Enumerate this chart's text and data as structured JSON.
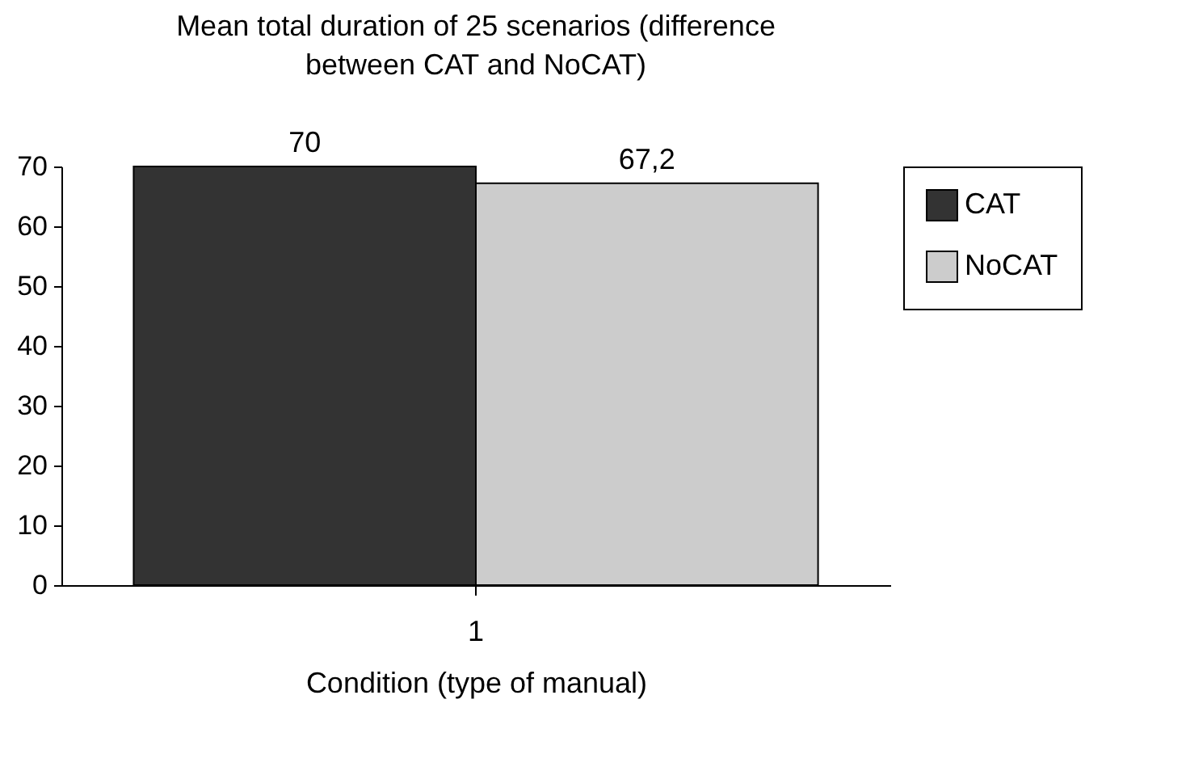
{
  "chart_data": {
    "type": "bar",
    "title": "Mean total duration of 25 scenarios (difference between CAT and NoCAT)",
    "xlabel": "Condition (type of manual)",
    "categories": [
      "1"
    ],
    "series": [
      {
        "name": "CAT",
        "color": "#333333",
        "values": [
          70
        ],
        "value_labels": [
          "70"
        ]
      },
      {
        "name": "NoCAT",
        "color": "#cccccc",
        "values": [
          67.2
        ],
        "value_labels": [
          "67,2"
        ]
      }
    ],
    "ylim": [
      0,
      70
    ],
    "yticks": [
      0,
      10,
      20,
      30,
      40,
      50,
      60,
      70
    ],
    "grid": false,
    "legend": "right"
  }
}
